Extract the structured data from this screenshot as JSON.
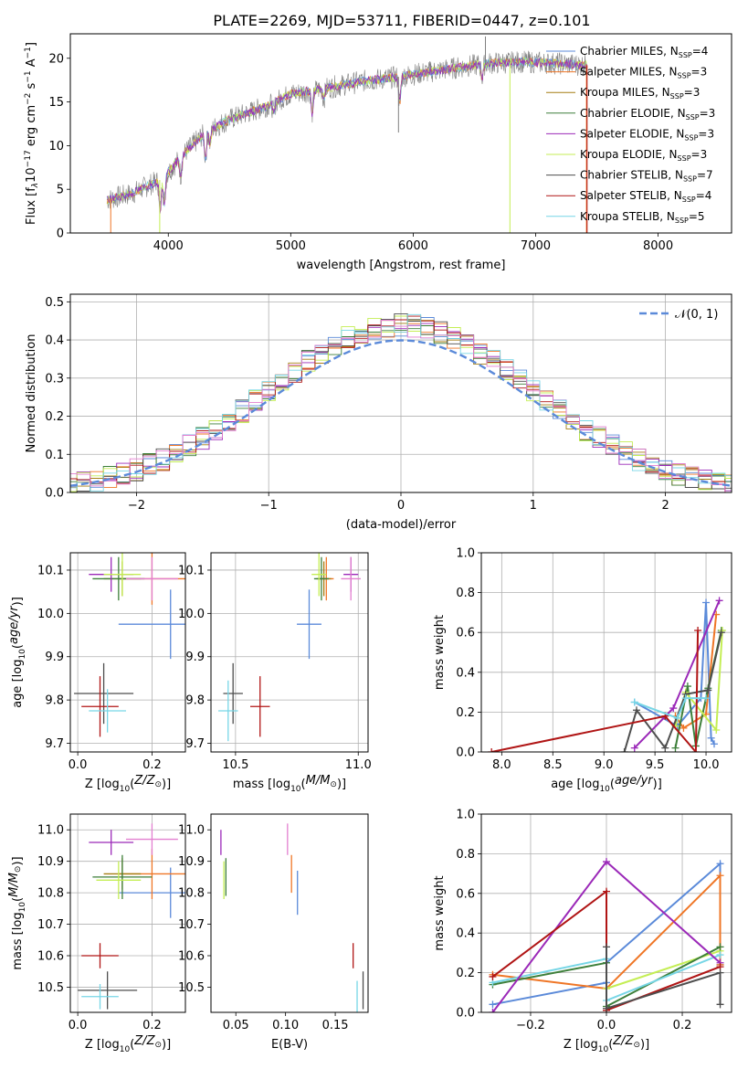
{
  "figure_title": "PLATE=2269, MJD=53711, FIBERID=0447, z=0.101",
  "colors": {
    "Chabrier MILES": "#5b8ad9",
    "Salpeter MILES": "#ef7626",
    "Kroupa MILES": "#a57e12",
    "Chabrier ELODIE": "#3d7f3a",
    "Salpeter ELODIE": "#9b29b8",
    "Kroupa ELODIE": "#c4ee54",
    "Chabrier STELIB": "#4e4e4e",
    "Salpeter STELIB": "#b01515",
    "Kroupa STELIB": "#77d6e6",
    "data": "#808080",
    "pink": "#e37fd0"
  },
  "chart_data": [
    {
      "id": "spectrum",
      "type": "line",
      "xlabel": "wavelength [Angstrom, rest frame]",
      "ylabel": "Flux [f_λ 10^-17 erg cm^-2 s^-1 A^-1]",
      "ylabel_parts": {
        "a": "Flux [f",
        "b": "λ",
        "c": "10",
        "d": "−17",
        "e": " erg cm",
        "f": "−2",
        "g": " s",
        "h": "−1",
        "i": " A",
        "j": "−1",
        "k": "]"
      },
      "xlim": [
        3200,
        8600
      ],
      "ylim": [
        0,
        22.8
      ],
      "xticks": [
        4000,
        5000,
        6000,
        7000,
        8000
      ],
      "yticks": [
        0,
        5,
        10,
        15,
        20
      ],
      "continuum_x": [
        3500,
        3700,
        3950,
        4150,
        4300,
        4500,
        4800,
        5000,
        5300,
        5600,
        5900,
        6200,
        6600,
        6900,
        7200,
        7420
      ],
      "continuum_y": [
        3.8,
        4.5,
        6.2,
        9.4,
        11.5,
        13.0,
        14.5,
        15.9,
        16.6,
        17.4,
        17.9,
        18.6,
        19.4,
        19.6,
        19.4,
        19.2
      ],
      "data_range": [
        3500,
        7420
      ],
      "legend": [
        {
          "name": "Chabrier MILES",
          "sub": "SSP",
          "value": "4"
        },
        {
          "name": "Salpeter MILES",
          "sub": "SSP",
          "value": "3"
        },
        {
          "name": "Kroupa MILES",
          "sub": "SSP",
          "value": "3"
        },
        {
          "name": "Chabrier ELODIE",
          "sub": "SSP",
          "value": "3"
        },
        {
          "name": "Salpeter ELODIE",
          "sub": "SSP",
          "value": "3"
        },
        {
          "name": "Kroupa ELODIE",
          "sub": "SSP",
          "value": "3"
        },
        {
          "name": "Chabrier STELIB",
          "sub": "SSP",
          "value": "7"
        },
        {
          "name": "Salpeter STELIB",
          "sub": "SSP",
          "value": "4"
        },
        {
          "name": "Kroupa STELIB",
          "sub": "SSP",
          "value": "5"
        }
      ],
      "legend_prefix": "N",
      "legend_placement": "right"
    },
    {
      "id": "residuals",
      "type": "step",
      "xlabel": "(data-model)/error",
      "ylabel": "Normed distribution",
      "xlim": [
        -2.5,
        2.5
      ],
      "ylim": [
        0,
        0.52
      ],
      "xticks": [
        -2,
        -1,
        0,
        1,
        2
      ],
      "xtick_labels": [
        "−2",
        "−1",
        "0",
        "1",
        "2"
      ],
      "yticks": [
        0.0,
        0.1,
        0.2,
        0.3,
        0.4,
        0.5
      ],
      "ytick_labels": [
        "0.0",
        "0.1",
        "0.2",
        "0.3",
        "0.4",
        "0.5"
      ],
      "grid": true,
      "bin_width": 0.1,
      "gaussian_label": "𝒩(0, 1)",
      "legend_placement": "top-right"
    },
    {
      "id": "age-Z",
      "type": "errorbar",
      "xlabel": "Z [log10(Z/Z⊙)]",
      "ylabel": "age  [log10(age/yr)]",
      "xlim": [
        -0.02,
        0.29
      ],
      "ylim": [
        9.68,
        10.14
      ],
      "xticks": [
        0.0,
        0.2
      ],
      "xtick_labels": [
        "0.0",
        "0.2"
      ],
      "yticks": [
        9.7,
        9.8,
        9.9,
        10.0,
        10.1
      ],
      "ytick_labels": [
        "9.7",
        "9.8",
        "9.9",
        "10.0",
        "10.1"
      ],
      "grid": true,
      "points": [
        {
          "series": "Chabrier MILES",
          "x": 0.25,
          "y": 9.975,
          "xerr": 0.14,
          "yerr": 0.08
        },
        {
          "series": "Salpeter MILES",
          "x": 0.2,
          "y": 10.08,
          "xerr": 0.09,
          "yerr": 0.06
        },
        {
          "series": "Kroupa MILES",
          "x": 0.12,
          "y": 10.08,
          "xerr": 0.05,
          "yerr": 0.04
        },
        {
          "series": "Chabrier ELODIE",
          "x": 0.11,
          "y": 10.08,
          "xerr": 0.07,
          "yerr": 0.05
        },
        {
          "series": "Salpeter ELODIE",
          "x": 0.09,
          "y": 10.09,
          "xerr": 0.06,
          "yerr": 0.04
        },
        {
          "series": "Kroupa ELODIE",
          "x": 0.12,
          "y": 10.09,
          "xerr": 0.05,
          "yerr": 0.05
        },
        {
          "series": "Chabrier STELIB",
          "x": 0.07,
          "y": 9.815,
          "xerr": 0.08,
          "yerr": 0.07
        },
        {
          "series": "Salpeter STELIB",
          "x": 0.06,
          "y": 9.785,
          "xerr": 0.05,
          "yerr": 0.07
        },
        {
          "series": "Kroupa STELIB",
          "x": 0.08,
          "y": 9.775,
          "xerr": 0.05,
          "yerr": 0.05
        },
        {
          "series": "pink",
          "x": 0.2,
          "y": 10.08,
          "xerr": 0.07,
          "yerr": 0.05
        }
      ]
    },
    {
      "id": "age-mass",
      "type": "errorbar",
      "xlabel": "mass [log10(M/M⊙)]",
      "ylabel": "",
      "xlim": [
        10.4,
        11.04
      ],
      "ylim": [
        9.68,
        10.14
      ],
      "xticks": [
        10.5,
        11.0
      ],
      "xtick_labels": [
        "10.5",
        "11.0"
      ],
      "yticks": [
        9.7,
        9.8,
        9.9,
        10.0,
        10.1
      ],
      "ytick_labels": [
        "9.7",
        "9.8",
        "9.9",
        "10.0",
        "10.1"
      ],
      "grid": true,
      "points": [
        {
          "series": "Chabrier MILES",
          "x": 10.8,
          "y": 9.975,
          "xerr": 0.05,
          "yerr": 0.08
        },
        {
          "series": "Salpeter MILES",
          "x": 10.87,
          "y": 10.08,
          "xerr": 0.03,
          "yerr": 0.05
        },
        {
          "series": "Kroupa MILES",
          "x": 10.86,
          "y": 10.08,
          "xerr": 0.03,
          "yerr": 0.04
        },
        {
          "series": "Chabrier ELODIE",
          "x": 10.85,
          "y": 10.08,
          "xerr": 0.03,
          "yerr": 0.05
        },
        {
          "series": "Salpeter ELODIE",
          "x": 10.97,
          "y": 10.09,
          "xerr": 0.03,
          "yerr": 0.04
        },
        {
          "series": "Kroupa ELODIE",
          "x": 10.84,
          "y": 10.09,
          "xerr": 0.03,
          "yerr": 0.05
        },
        {
          "series": "Chabrier STELIB",
          "x": 10.49,
          "y": 9.815,
          "xerr": 0.04,
          "yerr": 0.07
        },
        {
          "series": "Salpeter STELIB",
          "x": 10.6,
          "y": 9.785,
          "xerr": 0.04,
          "yerr": 0.07
        },
        {
          "series": "Kroupa STELIB",
          "x": 10.47,
          "y": 9.775,
          "xerr": 0.04,
          "yerr": 0.07
        },
        {
          "series": "pink",
          "x": 10.97,
          "y": 10.08,
          "xerr": 0.04,
          "yerr": 0.05
        }
      ]
    },
    {
      "id": "weight-age",
      "type": "line",
      "xlabel": "age  [log10(age/yr)]",
      "ylabel": "mass weight",
      "xlim": [
        7.8,
        10.25
      ],
      "ylim": [
        0,
        1.0
      ],
      "xticks": [
        8.0,
        8.5,
        9.0,
        9.5,
        10.0
      ],
      "xtick_labels": [
        "8.0",
        "8.5",
        "9.0",
        "9.5",
        "10.0"
      ],
      "yticks": [
        0.0,
        0.2,
        0.4,
        0.6,
        0.8,
        1.0
      ],
      "ytick_labels": [
        "0.0",
        "0.2",
        "0.4",
        "0.6",
        "0.8",
        "1.0"
      ],
      "grid": true,
      "series": [
        {
          "name": "Chabrier MILES",
          "x": [
            9.3,
            9.72,
            9.95,
            10.0,
            10.05,
            10.08
          ],
          "y": [
            0.25,
            0.13,
            0.27,
            0.75,
            0.07,
            0.04
          ]
        },
        {
          "name": "Salpeter MILES",
          "x": [
            9.7,
            9.78,
            10.0,
            10.1
          ],
          "y": [
            0.18,
            0.12,
            0.19,
            0.69
          ]
        },
        {
          "name": "Chabrier ELODIE",
          "x": [
            9.7,
            9.82,
            9.9,
            10.02,
            10.15
          ],
          "y": [
            0.02,
            0.33,
            0.03,
            0.32,
            0.61
          ]
        },
        {
          "name": "Salpeter ELODIE",
          "x": [
            9.3,
            9.68,
            10.13
          ],
          "y": [
            0.02,
            0.22,
            0.76
          ]
        },
        {
          "name": "Kroupa ELODIE",
          "x": [
            9.7,
            9.8,
            10.1,
            10.16
          ],
          "y": [
            0.13,
            0.3,
            0.11,
            0.61
          ]
        },
        {
          "name": "Chabrier STELIB",
          "x": [
            9.2,
            9.32,
            9.6,
            9.8,
            10.02,
            10.15
          ],
          "y": [
            0.0,
            0.21,
            0.02,
            0.29,
            0.31,
            0.6
          ]
        },
        {
          "name": "Salpeter STELIB",
          "x": [
            7.9,
            9.6,
            9.9,
            9.92
          ],
          "y": [
            0.0,
            0.18,
            0.0,
            0.61
          ]
        },
        {
          "name": "Kroupa STELIB",
          "x": [
            9.3,
            9.72,
            9.8,
            10.0
          ],
          "y": [
            0.25,
            0.17,
            0.27,
            0.27
          ]
        }
      ]
    },
    {
      "id": "mass-Z",
      "type": "errorbar",
      "xlabel": "Z [log10(Z/Z⊙)]",
      "ylabel": "mass [log10(M/M⊙)]",
      "xlim": [
        -0.02,
        0.29
      ],
      "ylim": [
        10.42,
        11.05
      ],
      "xticks": [
        0.0,
        0.2
      ],
      "xtick_labels": [
        "0.0",
        "0.2"
      ],
      "yticks": [
        10.5,
        10.6,
        10.7,
        10.8,
        10.9,
        11.0
      ],
      "ytick_labels": [
        "10.5",
        "10.6",
        "10.7",
        "10.8",
        "10.9",
        "11.0"
      ],
      "grid": true,
      "points": [
        {
          "series": "Chabrier MILES",
          "x": 0.25,
          "y": 10.8,
          "xerr": 0.14,
          "yerr": 0.08
        },
        {
          "series": "Salpeter MILES",
          "x": 0.2,
          "y": 10.86,
          "xerr": 0.09,
          "yerr": 0.08
        },
        {
          "series": "Kroupa MILES",
          "x": 0.12,
          "y": 10.86,
          "xerr": 0.05,
          "yerr": 0.05
        },
        {
          "series": "Chabrier ELODIE",
          "x": 0.12,
          "y": 10.85,
          "xerr": 0.08,
          "yerr": 0.07
        },
        {
          "series": "Salpeter ELODIE",
          "x": 0.09,
          "y": 10.96,
          "xerr": 0.06,
          "yerr": 0.04
        },
        {
          "series": "Kroupa ELODIE",
          "x": 0.11,
          "y": 10.84,
          "xerr": 0.06,
          "yerr": 0.06
        },
        {
          "series": "Chabrier STELIB",
          "x": 0.08,
          "y": 10.49,
          "xerr": 0.08,
          "yerr": 0.06
        },
        {
          "series": "Salpeter STELIB",
          "x": 0.06,
          "y": 10.6,
          "xerr": 0.05,
          "yerr": 0.04
        },
        {
          "series": "Kroupa STELIB",
          "x": 0.06,
          "y": 10.47,
          "xerr": 0.05,
          "yerr": 0.04
        },
        {
          "series": "pink",
          "x": 0.2,
          "y": 10.97,
          "xerr": 0.07,
          "yerr": 0.05
        }
      ]
    },
    {
      "id": "mass-EBV",
      "type": "errorbar",
      "xlabel": "E(B-V)",
      "ylabel": "",
      "xlim": [
        0.025,
        0.183
      ],
      "ylim": [
        10.42,
        11.05
      ],
      "xticks": [
        0.05,
        0.1,
        0.15
      ],
      "xtick_labels": [
        "0.05",
        "0.10",
        "0.15"
      ],
      "yticks": [
        10.5,
        10.6,
        10.7,
        10.8,
        10.9,
        11.0
      ],
      "ytick_labels": [
        "10.5",
        "10.6",
        "10.7",
        "10.8",
        "10.9",
        "11.0"
      ],
      "grid": false,
      "points": [
        {
          "series": "Salpeter ELODIE",
          "x": 0.035,
          "y": 10.96,
          "xerr": 0,
          "yerr": 0.04
        },
        {
          "series": "Kroupa ELODIE",
          "x": 0.038,
          "y": 10.84,
          "xerr": 0,
          "yerr": 0.06
        },
        {
          "series": "Chabrier ELODIE",
          "x": 0.04,
          "y": 10.85,
          "xerr": 0,
          "yerr": 0.06
        },
        {
          "series": "pink",
          "x": 0.102,
          "y": 10.97,
          "xerr": 0,
          "yerr": 0.05
        },
        {
          "series": "Salpeter MILES",
          "x": 0.106,
          "y": 10.86,
          "xerr": 0,
          "yerr": 0.06
        },
        {
          "series": "Chabrier MILES",
          "x": 0.112,
          "y": 10.8,
          "xerr": 0,
          "yerr": 0.07
        },
        {
          "series": "Salpeter STELIB",
          "x": 0.168,
          "y": 10.6,
          "xerr": 0,
          "yerr": 0.04
        },
        {
          "series": "Kroupa STELIB",
          "x": 0.172,
          "y": 10.47,
          "xerr": 0,
          "yerr": 0.05
        },
        {
          "series": "Chabrier STELIB",
          "x": 0.178,
          "y": 10.49,
          "xerr": 0,
          "yerr": 0.06
        }
      ]
    },
    {
      "id": "weight-Z",
      "type": "line",
      "xlabel": "Z [log10(Z/Z⊙)]",
      "ylabel": "mass weight",
      "xlim": [
        -0.33,
        0.33
      ],
      "ylim": [
        0,
        1.0
      ],
      "xticks": [
        -0.2,
        0.0,
        0.2
      ],
      "xtick_labels": [
        "−0.2",
        "0.0",
        "0.2"
      ],
      "yticks": [
        0.0,
        0.2,
        0.4,
        0.6,
        0.8,
        1.0
      ],
      "ytick_labels": [
        "0.0",
        "0.2",
        "0.4",
        "0.6",
        "0.8",
        "1.0"
      ],
      "grid": true,
      "series": [
        {
          "name": "Chabrier MILES",
          "x": [
            -0.3,
            0.0,
            0.0,
            0.3,
            0.3
          ],
          "y": [
            0.04,
            0.15,
            0.25,
            0.75,
            0.24
          ]
        },
        {
          "name": "Salpeter MILES",
          "x": [
            -0.3,
            0.0,
            0.3,
            0.3
          ],
          "y": [
            0.19,
            0.12,
            0.69,
            0.24
          ]
        },
        {
          "name": "Kroupa ELODIE",
          "x": [
            0.0,
            0.3
          ],
          "y": [
            0.12,
            0.31
          ]
        },
        {
          "name": "Chabrier ELODIE",
          "x": [
            -0.3,
            0.0,
            0.0,
            0.3
          ],
          "y": [
            0.14,
            0.25,
            0.03,
            0.33
          ]
        },
        {
          "name": "Kroupa STELIB",
          "x": [
            -0.3,
            0.0,
            0.0,
            0.3
          ],
          "y": [
            0.15,
            0.27,
            0.06,
            0.29
          ]
        },
        {
          "name": "Salpeter ELODIE",
          "x": [
            -0.3,
            0.0,
            0.3
          ],
          "y": [
            0.0,
            0.76,
            0.25
          ]
        },
        {
          "name": "Salpeter STELIB",
          "x": [
            -0.3,
            0.0,
            0.0,
            0.3
          ],
          "y": [
            0.18,
            0.61,
            0.01,
            0.23
          ]
        },
        {
          "name": "Chabrier STELIB",
          "x": [
            0.0,
            0.0,
            0.3,
            0.3
          ],
          "y": [
            0.33,
            0.02,
            0.2,
            0.04
          ]
        }
      ]
    }
  ]
}
